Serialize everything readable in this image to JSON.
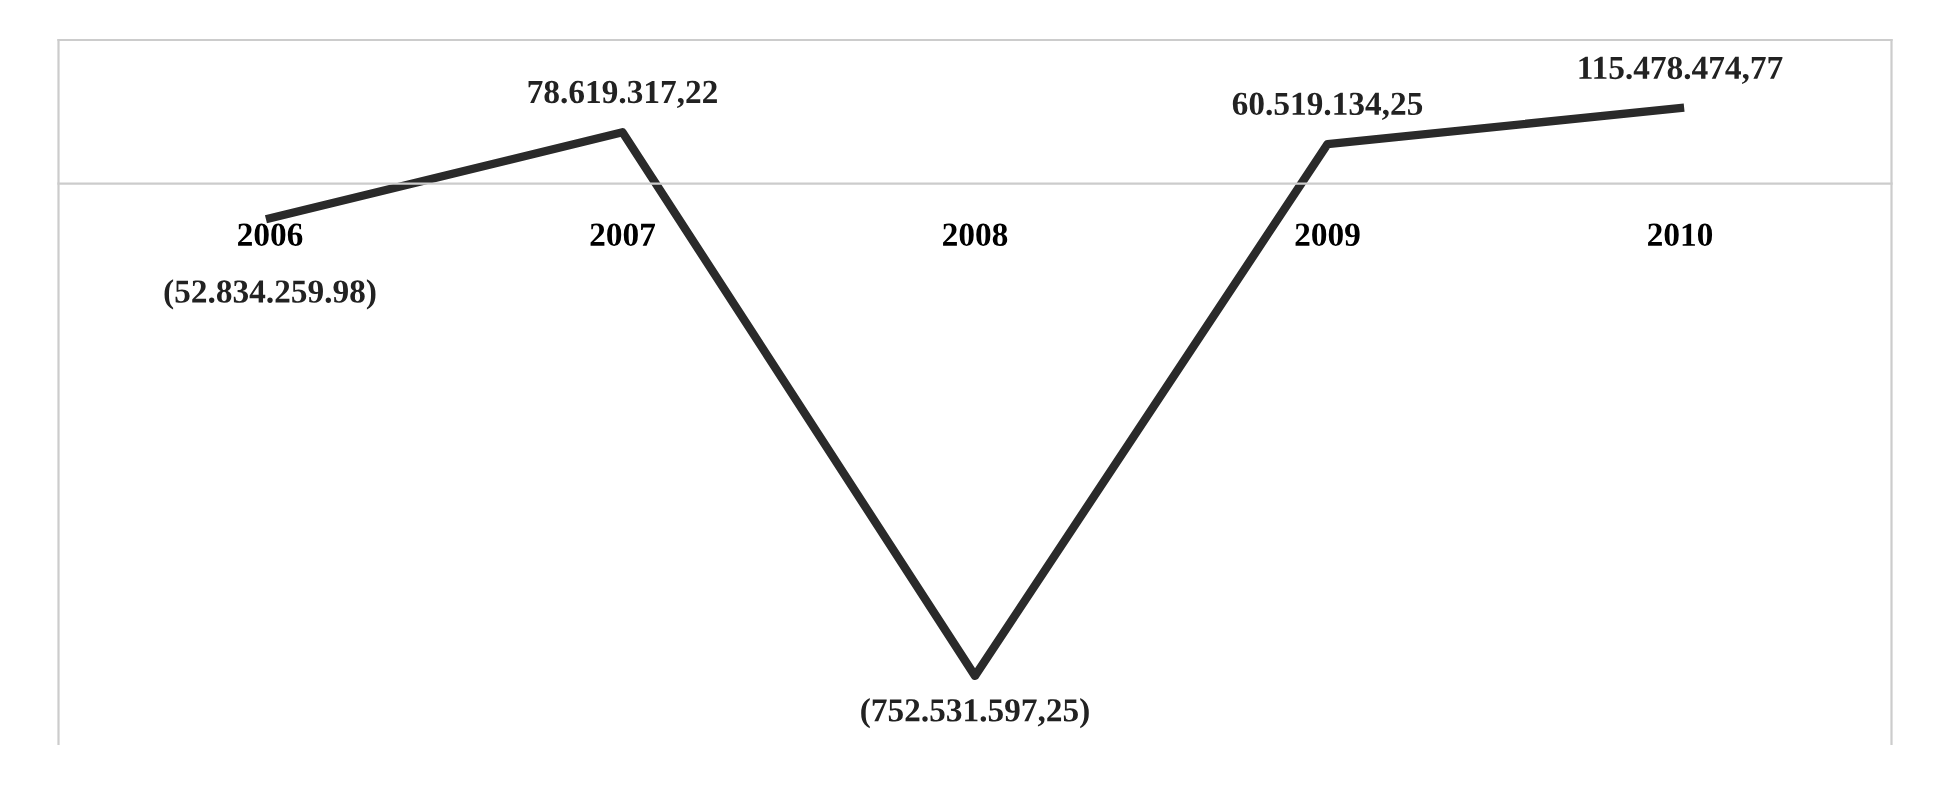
{
  "chart_data": {
    "type": "line",
    "categories": [
      "2006",
      "2007",
      "2008",
      "2009",
      "2010"
    ],
    "series": [
      {
        "color": "#2a2a2a",
        "values": [
          -52834259.98,
          78619317.22,
          -752531597.25,
          60519134.25,
          115478474.77
        ],
        "value_labels": [
          "(52.834.259.98)",
          "78.619.317,22",
          "(752.531.597,25)",
          "60.519.134,25",
          "115.478.474,77"
        ]
      }
    ],
    "marker": "none",
    "line_style": "solid",
    "grid": false,
    "legend": false,
    "tick_labels": "x"
  }
}
